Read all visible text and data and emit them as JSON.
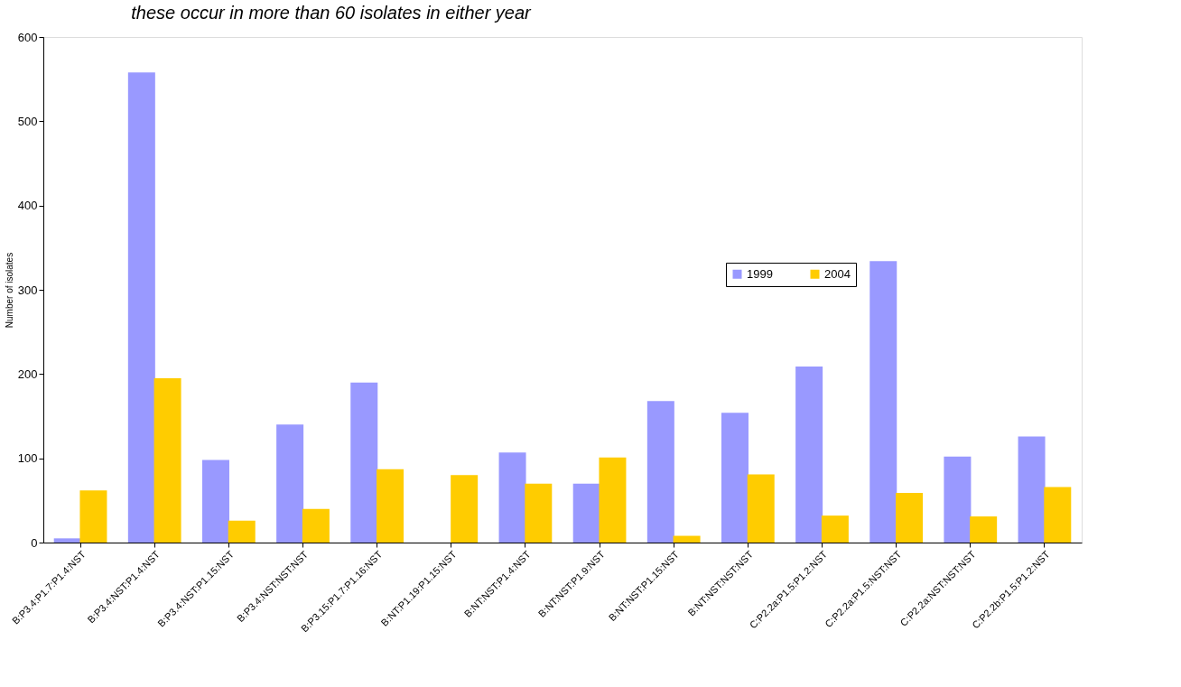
{
  "chart_data": {
    "type": "bar",
    "title": "these occur in more than 60 isolates in either year",
    "ylabel": "Number of isolates",
    "categories": [
      "B:P3.4:P1.7:P1.4:NST",
      "B:P3.4:NST:P1.4:NST",
      "B:P3.4:NST:P1.15:NST",
      "B:P3.4:NST:NST:NST",
      "B:P3.15:P1.7:P1.16:NST",
      "B:NT:P1.19:P1.15:NST",
      "B:NT:NST:P1.4:NST",
      "B:NT:NST:P1.9:NST",
      "B:NT:NST:P1.15:NST",
      "B:NT:NST:NST:NST",
      "C:P2.2a:P1.5:P1.2:NST",
      "C:P2.2a:P1.5:NST:NST",
      "C:P2.2a:NST:NST:NST",
      "C:P2.2b:P1.5:P1.2:NST"
    ],
    "series": [
      {
        "name": "1999",
        "color": "#9999ff",
        "values": [
          5,
          558,
          98,
          140,
          190,
          0,
          107,
          70,
          168,
          154,
          209,
          334,
          102,
          126
        ]
      },
      {
        "name": "2004",
        "color": "#ffcc00",
        "values": [
          62,
          195,
          26,
          40,
          87,
          80,
          70,
          101,
          8,
          81,
          32,
          59,
          31,
          66
        ]
      }
    ],
    "ylim": [
      0,
      600
    ],
    "yticks": [
      0,
      100,
      200,
      300,
      400,
      500,
      600
    ],
    "grid": false,
    "legend": "top right"
  }
}
